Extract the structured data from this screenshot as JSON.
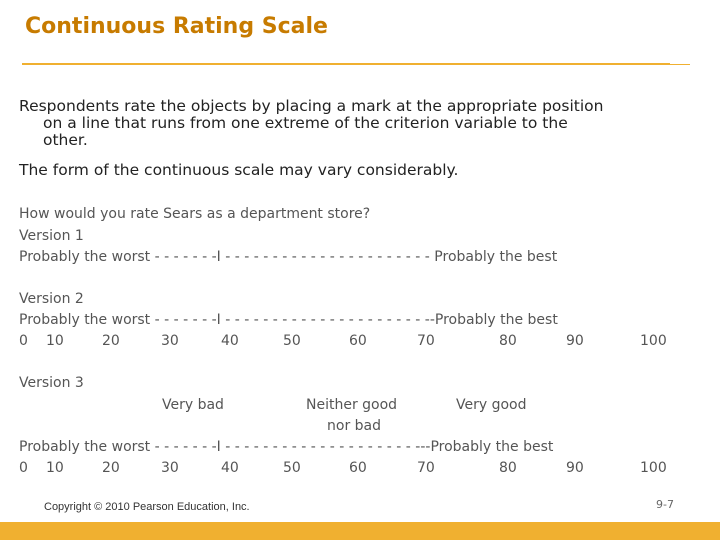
{
  "title": "Continuous Rating Scale",
  "intro": {
    "line1": "Respondents rate the objects by placing a mark at the appropriate position",
    "line2": "on a line that runs from one extreme of the criterion variable to the",
    "line3": "other.",
    "line4": "The form of the continuous scale may vary considerably."
  },
  "question": "How would you rate Sears as a department store?",
  "version1": {
    "label": "Version 1",
    "scale_line": "Probably the worst - - - - - - -I - - - - - - - - - - - - - - - - - - - - - - Probably the best"
  },
  "version2": {
    "label": "Version 2",
    "scale_line": "Probably the worst - - - - - - -I - - - - - - - - - - - - - - - - - - - - - --Probably the best",
    "ticks": [
      "0",
      "10",
      "20",
      "30",
      "40",
      "50",
      "60",
      "70",
      "80",
      "90",
      "100"
    ]
  },
  "version3": {
    "label": "Version 3",
    "anchor_left": "Very bad",
    "anchor_mid_1": "Neither good",
    "anchor_mid_2": "nor bad",
    "anchor_right": "Very good",
    "scale_line": "Probably the worst - - - - - - -I - - - - - - - - - - - -  - - - - - - - - ---Probably the best",
    "ticks": [
      "0",
      "10",
      "20",
      "30",
      "40",
      "50",
      "60",
      "70",
      "80",
      "90",
      "100"
    ]
  },
  "footer": {
    "copyright": "Copyright © 2010 Pearson Education, Inc.",
    "page": "9-7"
  },
  "colors": {
    "title": "#c77b00",
    "accent": "#f0b030"
  }
}
